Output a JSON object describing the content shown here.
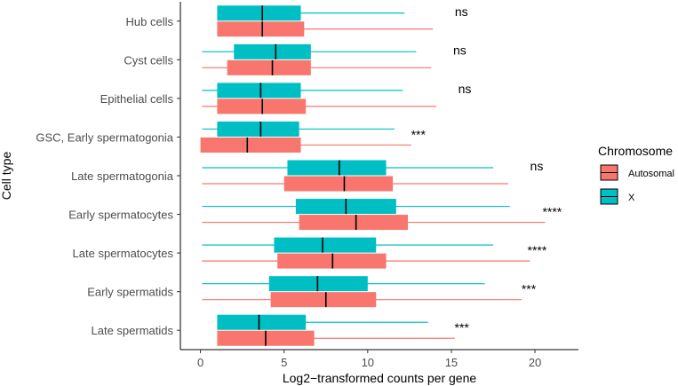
{
  "chart_data": {
    "type": "boxplot",
    "orientation": "horizontal",
    "xlabel": "Log2−transformed counts per gene",
    "ylabel": "Cell type",
    "xlim": [
      -1.2,
      22.6
    ],
    "xticks": [
      0,
      5,
      10,
      15,
      20
    ],
    "grid": false,
    "legend": {
      "title": "Chromosome",
      "placement": "right",
      "entries": [
        {
          "name": "Autosomal",
          "color": "#f8766d"
        },
        {
          "name": "X",
          "color": "#00bfc4"
        }
      ]
    },
    "categories": [
      "Hub cells",
      "Cyst cells",
      "Epithelial cells",
      "GSC, Early spermatogonia",
      "Late spermatogonia",
      "Early spermatocytes",
      "Late spermatocytes",
      "Early spermatids",
      "Late spermatids"
    ],
    "series": [
      {
        "name": "Autosomal",
        "color": "#f8766d",
        "boxes": [
          {
            "whisker_low": 1.0,
            "q1": 1.0,
            "median": 3.7,
            "q3": 6.2,
            "whisker_high": 13.9
          },
          {
            "whisker_low": 0.1,
            "q1": 1.6,
            "median": 4.3,
            "q3": 6.6,
            "whisker_high": 13.8
          },
          {
            "whisker_low": 0.1,
            "q1": 1.0,
            "median": 3.7,
            "q3": 6.3,
            "whisker_high": 14.1
          },
          {
            "whisker_low": 0.0,
            "q1": 0.0,
            "median": 2.8,
            "q3": 6.0,
            "whisker_high": 12.6
          },
          {
            "whisker_low": 0.1,
            "q1": 5.0,
            "median": 8.6,
            "q3": 11.5,
            "whisker_high": 18.4
          },
          {
            "whisker_low": 0.1,
            "q1": 5.9,
            "median": 9.3,
            "q3": 12.4,
            "whisker_high": 20.6
          },
          {
            "whisker_low": 0.1,
            "q1": 4.6,
            "median": 7.9,
            "q3": 11.1,
            "whisker_high": 19.7
          },
          {
            "whisker_low": 0.1,
            "q1": 4.2,
            "median": 7.5,
            "q3": 10.5,
            "whisker_high": 19.2
          },
          {
            "whisker_low": 1.0,
            "q1": 1.0,
            "median": 3.9,
            "q3": 6.8,
            "whisker_high": 15.2
          }
        ]
      },
      {
        "name": "X",
        "color": "#00bfc4",
        "boxes": [
          {
            "whisker_low": 1.0,
            "q1": 1.0,
            "median": 3.7,
            "q3": 6.0,
            "whisker_high": 12.2
          },
          {
            "whisker_low": 0.1,
            "q1": 2.0,
            "median": 4.5,
            "q3": 6.6,
            "whisker_high": 12.9
          },
          {
            "whisker_low": 0.1,
            "q1": 1.0,
            "median": 3.6,
            "q3": 6.0,
            "whisker_high": 12.1
          },
          {
            "whisker_low": 0.1,
            "q1": 1.0,
            "median": 3.6,
            "q3": 5.9,
            "whisker_high": 11.6
          },
          {
            "whisker_low": 0.1,
            "q1": 5.2,
            "median": 8.3,
            "q3": 11.1,
            "whisker_high": 17.5
          },
          {
            "whisker_low": 0.1,
            "q1": 5.7,
            "median": 8.7,
            "q3": 11.7,
            "whisker_high": 18.5
          },
          {
            "whisker_low": 0.1,
            "q1": 4.4,
            "median": 7.3,
            "q3": 10.5,
            "whisker_high": 17.5
          },
          {
            "whisker_low": 0.1,
            "q1": 4.1,
            "median": 7.0,
            "q3": 10.0,
            "whisker_high": 17.0
          },
          {
            "whisker_low": 1.0,
            "q1": 1.0,
            "median": 3.5,
            "q3": 6.3,
            "whisker_high": 13.6
          }
        ]
      }
    ],
    "significance": [
      "ns",
      "ns",
      "ns",
      "***",
      "ns",
      "****",
      "****",
      "***",
      "***"
    ]
  }
}
